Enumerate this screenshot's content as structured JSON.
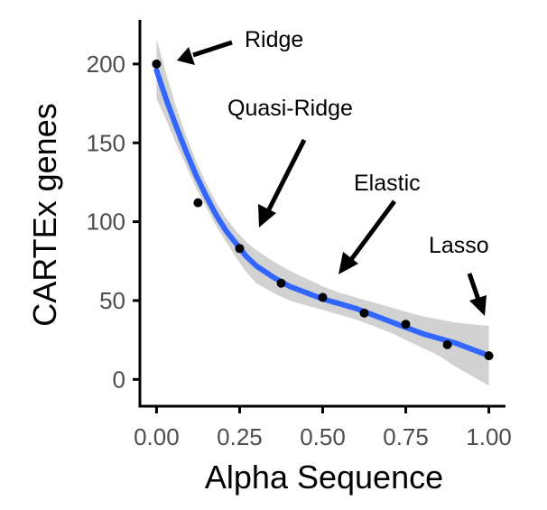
{
  "chart_data": {
    "type": "scatter",
    "xlabel": "Alpha Sequence",
    "ylabel": "CARTEx genes",
    "xlim": [
      -0.05,
      1.05
    ],
    "ylim": [
      -17,
      228
    ],
    "x_ticks": [
      "0.00",
      "0.25",
      "0.50",
      "0.75",
      "1.00"
    ],
    "x_tick_values": [
      0,
      0.25,
      0.5,
      0.75,
      1.0
    ],
    "y_ticks": [
      "0",
      "50",
      "100",
      "150",
      "200"
    ],
    "y_tick_values": [
      0,
      50,
      100,
      150,
      200
    ],
    "grid": false,
    "points": {
      "x": [
        0,
        0.125,
        0.25,
        0.375,
        0.5,
        0.625,
        0.75,
        0.875,
        1.0
      ],
      "y": [
        200,
        112,
        83,
        61,
        52,
        42,
        35,
        22,
        15
      ]
    },
    "smooth": {
      "x": [
        0,
        0.03,
        0.06,
        0.09,
        0.12,
        0.15,
        0.18,
        0.21,
        0.24,
        0.27,
        0.3,
        0.35,
        0.4,
        0.45,
        0.5,
        0.55,
        0.6,
        0.65,
        0.7,
        0.75,
        0.8,
        0.85,
        0.9,
        0.95,
        1.0
      ],
      "y": [
        196,
        177,
        160,
        144,
        129,
        116,
        104,
        94,
        86,
        78,
        72,
        65,
        59,
        55,
        51,
        48,
        45,
        41,
        37,
        33,
        29,
        26,
        23,
        19,
        15
      ],
      "lower": [
        178,
        164,
        149,
        135,
        121,
        109,
        97,
        87,
        77,
        68,
        61,
        55,
        50,
        47,
        44,
        41,
        38,
        34,
        30,
        25,
        20,
        15,
        8,
        2,
        -4
      ],
      "upper": [
        216,
        193,
        172,
        154,
        138,
        124,
        112,
        102,
        94,
        87,
        82,
        75,
        69,
        64,
        59,
        55,
        52,
        49,
        46,
        43,
        40,
        38,
        36,
        35,
        34
      ],
      "line_color": "#3366ff",
      "band_color": "#d2d2d2"
    },
    "annotations": [
      {
        "label": "Ridge"
      },
      {
        "label": "Quasi-Ridge"
      },
      {
        "label": "Elastic"
      },
      {
        "label": "Lasso"
      }
    ]
  }
}
